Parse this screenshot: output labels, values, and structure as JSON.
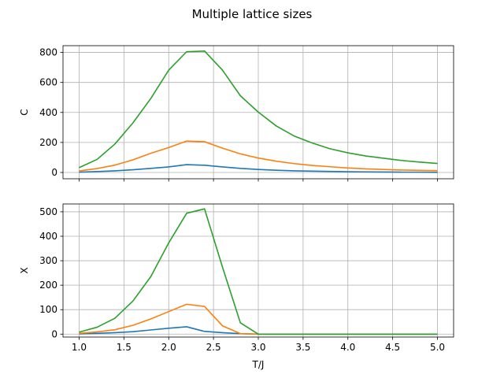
{
  "figure": {
    "title": "Multiple lattice sizes"
  },
  "chart_data": [
    {
      "type": "line",
      "title": "",
      "xlabel": "",
      "ylabel": "C",
      "xlim": [
        0.82,
        5.18
      ],
      "ylim": [
        -42,
        845
      ],
      "xticks": [
        1.0,
        1.5,
        2.0,
        2.5,
        3.0,
        3.5,
        4.0,
        4.5,
        5.0
      ],
      "xtick_labels_visible": false,
      "yticks": [
        0,
        200,
        400,
        600,
        800
      ],
      "ytick_labels": [
        "0",
        "200",
        "400",
        "600",
        "800"
      ],
      "grid": true,
      "x": [
        1.0,
        1.2,
        1.4,
        1.6,
        1.8,
        2.0,
        2.2,
        2.4,
        2.6,
        2.8,
        3.0,
        3.2,
        3.4,
        3.6,
        3.8,
        4.0,
        4.2,
        4.4,
        4.6,
        4.8,
        5.0
      ],
      "series": [
        {
          "color": "#1f77b4",
          "values": [
            2,
            6,
            11,
            18,
            27,
            37,
            52,
            48,
            37,
            27,
            20,
            15,
            11,
            9,
            7,
            5,
            4,
            3,
            2,
            2,
            1
          ]
        },
        {
          "color": "#ff7f0e",
          "values": [
            10,
            26,
            49,
            84,
            128,
            166,
            209,
            205,
            162,
            124,
            96,
            75,
            59,
            47,
            38,
            30,
            24,
            20,
            16,
            14,
            12
          ]
        },
        {
          "color": "#2ca02c",
          "values": [
            32,
            87,
            190,
            330,
            493,
            682,
            805,
            809,
            682,
            511,
            402,
            310,
            243,
            197,
            158,
            131,
            110,
            95,
            80,
            69,
            60
          ]
        }
      ]
    },
    {
      "type": "line",
      "title": "",
      "xlabel": "T/J",
      "ylabel": "X",
      "xlim": [
        0.82,
        5.18
      ],
      "ylim": [
        -12,
        532
      ],
      "xticks": [
        1.0,
        1.5,
        2.0,
        2.5,
        3.0,
        3.5,
        4.0,
        4.5,
        5.0
      ],
      "xtick_labels": [
        "1.0",
        "1.5",
        "2.0",
        "2.5",
        "3.0",
        "3.5",
        "4.0",
        "4.5",
        "5.0"
      ],
      "xtick_labels_visible": true,
      "yticks": [
        0,
        100,
        200,
        300,
        400,
        500
      ],
      "ytick_labels": [
        "0",
        "100",
        "200",
        "300",
        "400",
        "500"
      ],
      "grid": true,
      "x": [
        1.0,
        1.2,
        1.4,
        1.6,
        1.8,
        2.0,
        2.2,
        2.4,
        2.6,
        2.8,
        3.0,
        3.2,
        3.4,
        3.6,
        3.8,
        4.0,
        4.2,
        4.4,
        4.6,
        4.8,
        5.0
      ],
      "series": [
        {
          "color": "#1f77b4",
          "values": [
            1,
            3,
            6,
            10,
            17,
            24,
            30,
            11,
            6,
            2,
            0,
            0,
            0,
            0,
            0,
            0,
            0,
            0,
            0,
            0,
            0
          ]
        },
        {
          "color": "#ff7f0e",
          "values": [
            3,
            9,
            18,
            36,
            62,
            92,
            122,
            113,
            34,
            2,
            0,
            0,
            0,
            0,
            0,
            0,
            0,
            0,
            0,
            0,
            0
          ]
        },
        {
          "color": "#2ca02c",
          "values": [
            8,
            28,
            65,
            135,
            235,
            373,
            494,
            512,
            274,
            46,
            0,
            0,
            0,
            0,
            0,
            0,
            0,
            0,
            0,
            0,
            0
          ]
        }
      ]
    }
  ]
}
